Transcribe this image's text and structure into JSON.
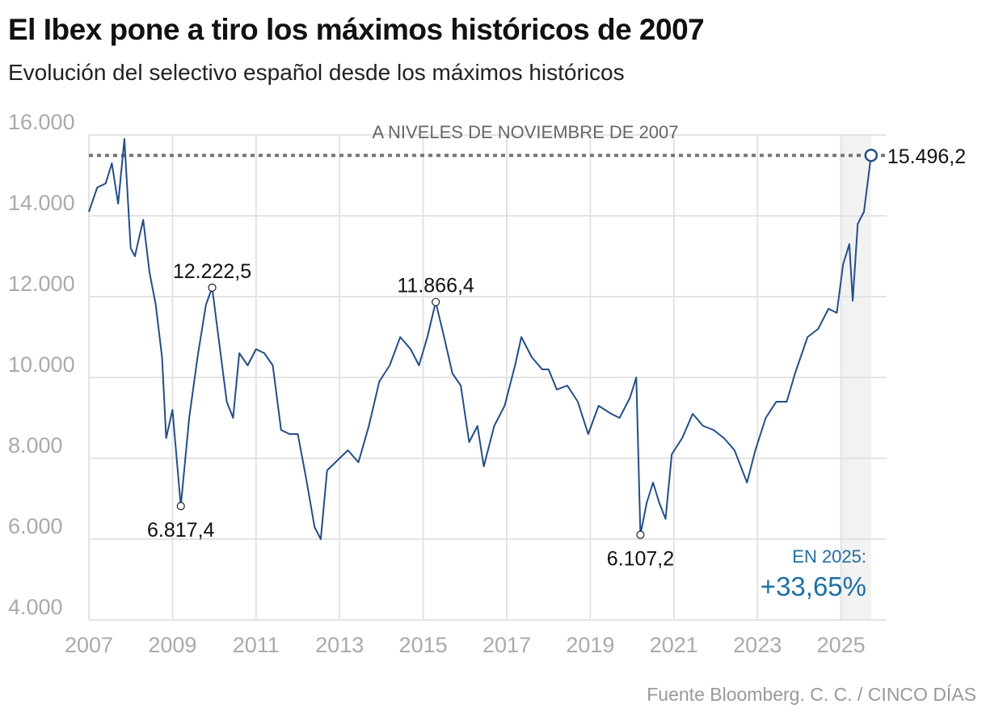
{
  "chart_data": {
    "type": "line",
    "title": "El Ibex pone a tiro los máximos históricos de 2007",
    "subtitle": "Evolución del selectivo español desde los máximos históricos",
    "source": "Fuente Bloomberg. C. C. / CINCO DÍAS",
    "ylim": [
      4000,
      16000
    ],
    "xlim": [
      2007,
      2025.9
    ],
    "y_ticks": [
      {
        "v": 4000,
        "label": "4.000"
      },
      {
        "v": 6000,
        "label": "6.000"
      },
      {
        "v": 8000,
        "label": "8.000"
      },
      {
        "v": 10000,
        "label": "10.000"
      },
      {
        "v": 12000,
        "label": "12.000"
      },
      {
        "v": 14000,
        "label": "14.000"
      },
      {
        "v": 16000,
        "label": "16.000"
      }
    ],
    "x_ticks": [
      "2007",
      "2009",
      "2011",
      "2013",
      "2015",
      "2017",
      "2019",
      "2021",
      "2023",
      "2025"
    ],
    "grid": true,
    "line_color": "#234e86",
    "reference_line": {
      "value": 15496.2,
      "label": "A NIVELES DE NOVIEMBRE DE 2007"
    },
    "highlight_period": {
      "from": 2025,
      "to": 2025.72
    },
    "x": [
      2007.0,
      2007.2,
      2007.4,
      2007.55,
      2007.7,
      2007.85,
      2008.0,
      2008.1,
      2008.3,
      2008.45,
      2008.6,
      2008.75,
      2008.85,
      2009.0,
      2009.2,
      2009.4,
      2009.6,
      2009.8,
      2009.95,
      2010.1,
      2010.3,
      2010.45,
      2010.6,
      2010.8,
      2011.0,
      2011.2,
      2011.4,
      2011.6,
      2011.8,
      2012.0,
      2012.2,
      2012.4,
      2012.55,
      2012.7,
      2012.9,
      2013.2,
      2013.45,
      2013.7,
      2013.95,
      2014.2,
      2014.45,
      2014.7,
      2014.9,
      2015.1,
      2015.3,
      2015.5,
      2015.7,
      2015.9,
      2016.1,
      2016.3,
      2016.45,
      2016.7,
      2016.95,
      2017.2,
      2017.35,
      2017.6,
      2017.85,
      2018.0,
      2018.2,
      2018.45,
      2018.7,
      2018.95,
      2019.2,
      2019.5,
      2019.7,
      2019.95,
      2020.1,
      2020.2,
      2020.35,
      2020.5,
      2020.65,
      2020.8,
      2020.95,
      2021.2,
      2021.45,
      2021.7,
      2021.95,
      2022.2,
      2022.45,
      2022.75,
      2022.95,
      2023.2,
      2023.45,
      2023.7,
      2023.9,
      2024.2,
      2024.45,
      2024.7,
      2024.9,
      2025.05,
      2025.2,
      2025.28,
      2025.4,
      2025.55,
      2025.72
    ],
    "values": [
      14100,
      14700,
      14800,
      15300,
      14300,
      15900,
      13200,
      13000,
      13900,
      12600,
      11800,
      10500,
      8500,
      9200,
      6817.4,
      9000,
      10500,
      11800,
      12222.5,
      11000,
      9400,
      9000,
      10600,
      10300,
      10700,
      10600,
      10300,
      8700,
      8600,
      8600,
      7500,
      6300,
      6000,
      7700,
      7900,
      8200,
      7900,
      8800,
      9900,
      10300,
      11000,
      10700,
      10300,
      11000,
      11866.4,
      11000,
      10100,
      9800,
      8400,
      8800,
      7800,
      8800,
      9300,
      10300,
      11000,
      10500,
      10200,
      10200,
      9700,
      9800,
      9400,
      8600,
      9300,
      9100,
      9000,
      9500,
      10000,
      6107.2,
      6900,
      7400,
      6900,
      6500,
      8100,
      8500,
      9100,
      8800,
      8700,
      8500,
      8200,
      7400,
      8200,
      9000,
      9400,
      9400,
      10100,
      11000,
      11200,
      11700,
      11600,
      12800,
      13300,
      11900,
      13800,
      14100,
      15496.2
    ],
    "annotations": [
      {
        "x": 2009.95,
        "y": 12222.5,
        "label": "12.222,5",
        "pos": "above"
      },
      {
        "x": 2009.2,
        "y": 6817.4,
        "label": "6.817,4",
        "pos": "below"
      },
      {
        "x": 2015.3,
        "y": 11866.4,
        "label": "11.866,4",
        "pos": "above"
      },
      {
        "x": 2020.2,
        "y": 6107.2,
        "label": "6.107,2",
        "pos": "below"
      },
      {
        "x": 2025.72,
        "y": 15496.2,
        "label": "15.496,2",
        "pos": "right"
      }
    ],
    "callout": {
      "label": "EN 2025:",
      "value": "+33,65%",
      "color": "#1f6fa3"
    }
  }
}
